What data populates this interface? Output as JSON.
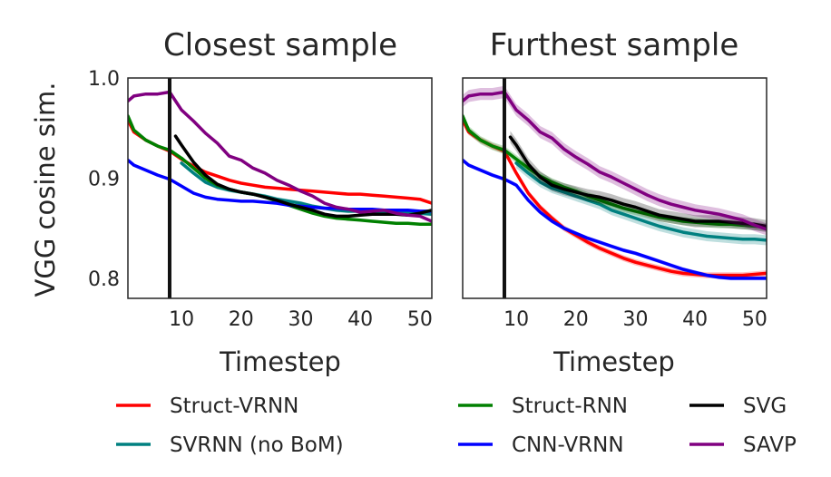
{
  "chart_data": {
    "type": "line",
    "ylabel": "VGG cosine sim.",
    "xlabel": "Timestep",
    "xlim": [
      1,
      52
    ],
    "ylim": [
      0.78,
      1.0
    ],
    "xticks": [
      10,
      20,
      30,
      40,
      50
    ],
    "yticks": [
      0.8,
      0.9,
      1.0
    ],
    "ytick_labels": [
      "0.8",
      "0.9",
      "1.0"
    ],
    "vline_x": 8,
    "grid": false,
    "legend_placement": "bottom",
    "legend": [
      {
        "name": "Struct-VRNN",
        "color": "#ff0000"
      },
      {
        "name": "SVRNN (no BoM)",
        "color": "#008080"
      },
      {
        "name": "Struct-RNN",
        "color": "#008000"
      },
      {
        "name": "CNN-VRNN",
        "color": "#0000ff"
      },
      {
        "name": "SVG",
        "color": "#000000"
      },
      {
        "name": "SAVP",
        "color": "#800080"
      }
    ],
    "panels": [
      {
        "title": "Closest sample",
        "series": [
          {
            "name": "Struct-VRNN",
            "color": "#ff0000",
            "band": 0.001,
            "x": [
              1,
              2,
              4,
              6,
              8,
              10,
              12,
              14,
              16,
              18,
              20,
              22,
              24,
              26,
              28,
              30,
              32,
              34,
              36,
              38,
              40,
              42,
              44,
              46,
              48,
              50,
              52
            ],
            "y": [
              0.958,
              0.946,
              0.938,
              0.932,
              0.927,
              0.919,
              0.912,
              0.906,
              0.902,
              0.898,
              0.895,
              0.893,
              0.891,
              0.89,
              0.889,
              0.888,
              0.887,
              0.886,
              0.885,
              0.884,
              0.884,
              0.883,
              0.882,
              0.881,
              0.88,
              0.879,
              0.875
            ]
          },
          {
            "name": "SVRNN (no BoM)",
            "color": "#008080",
            "band": 0.002,
            "x": [
              10,
              12,
              14,
              16,
              18,
              20,
              22,
              24,
              26,
              28,
              30,
              32,
              34,
              36,
              38,
              40,
              42,
              44,
              46,
              48,
              50,
              52
            ],
            "y": [
              0.915,
              0.905,
              0.896,
              0.891,
              0.888,
              0.886,
              0.884,
              0.882,
              0.879,
              0.877,
              0.875,
              0.872,
              0.87,
              0.868,
              0.867,
              0.867,
              0.867,
              0.867,
              0.866,
              0.865,
              0.865,
              0.864
            ]
          },
          {
            "name": "Struct-RNN",
            "color": "#008000",
            "band": 0.001,
            "x": [
              1,
              2,
              4,
              6,
              8,
              10,
              12,
              14,
              16,
              18,
              20,
              22,
              24,
              26,
              28,
              30,
              32,
              34,
              36,
              38,
              40,
              42,
              44,
              46,
              48,
              50,
              52
            ],
            "y": [
              0.962,
              0.948,
              0.938,
              0.932,
              0.928,
              0.92,
              0.91,
              0.9,
              0.893,
              0.889,
              0.886,
              0.884,
              0.881,
              0.877,
              0.873,
              0.869,
              0.865,
              0.862,
              0.86,
              0.859,
              0.858,
              0.857,
              0.856,
              0.855,
              0.855,
              0.854,
              0.854
            ]
          },
          {
            "name": "CNN-VRNN",
            "color": "#0000ff",
            "band": 0.001,
            "x": [
              1,
              2,
              4,
              6,
              8,
              10,
              12,
              14,
              16,
              18,
              20,
              22,
              24,
              26,
              28,
              30,
              32,
              34,
              36,
              38,
              40,
              42,
              44,
              46,
              48,
              50,
              52
            ],
            "y": [
              0.918,
              0.913,
              0.908,
              0.903,
              0.899,
              0.892,
              0.885,
              0.881,
              0.879,
              0.878,
              0.877,
              0.877,
              0.876,
              0.875,
              0.873,
              0.872,
              0.871,
              0.87,
              0.87,
              0.869,
              0.869,
              0.869,
              0.868,
              0.868,
              0.868,
              0.867,
              0.867
            ]
          },
          {
            "name": "SVG",
            "color": "#000000",
            "band": 0.001,
            "x": [
              9,
              10,
              12,
              14,
              16,
              18,
              20,
              22,
              24,
              26,
              28,
              30,
              32,
              34,
              36,
              38,
              40,
              42,
              44,
              46,
              48,
              50,
              52
            ],
            "y": [
              0.942,
              0.933,
              0.916,
              0.903,
              0.894,
              0.889,
              0.886,
              0.884,
              0.881,
              0.878,
              0.874,
              0.871,
              0.868,
              0.864,
              0.862,
              0.862,
              0.863,
              0.864,
              0.864,
              0.864,
              0.863,
              0.865,
              0.868
            ]
          },
          {
            "name": "SAVP",
            "color": "#800080",
            "band": 0.001,
            "x": [
              1,
              2,
              4,
              6,
              8,
              10,
              12,
              14,
              16,
              18,
              20,
              22,
              24,
              26,
              28,
              30,
              32,
              34,
              36,
              38,
              40,
              42,
              44,
              46,
              48,
              50,
              52
            ],
            "y": [
              0.977,
              0.982,
              0.984,
              0.984,
              0.986,
              0.968,
              0.957,
              0.945,
              0.935,
              0.922,
              0.918,
              0.91,
              0.905,
              0.898,
              0.893,
              0.887,
              0.882,
              0.875,
              0.871,
              0.869,
              0.866,
              0.867,
              0.868,
              0.865,
              0.863,
              0.862,
              0.857
            ]
          }
        ]
      },
      {
        "title": "Furthest sample",
        "series": [
          {
            "name": "Struct-VRNN",
            "color": "#ff0000",
            "band": 0.003,
            "x": [
              1,
              2,
              4,
              6,
              8,
              10,
              12,
              14,
              16,
              18,
              20,
              22,
              24,
              26,
              28,
              30,
              32,
              34,
              36,
              38,
              40,
              42,
              44,
              46,
              48,
              50,
              52
            ],
            "y": [
              0.958,
              0.946,
              0.938,
              0.932,
              0.927,
              0.905,
              0.885,
              0.871,
              0.86,
              0.85,
              0.843,
              0.836,
              0.83,
              0.825,
              0.82,
              0.816,
              0.813,
              0.81,
              0.807,
              0.805,
              0.804,
              0.803,
              0.803,
              0.803,
              0.803,
              0.804,
              0.805
            ]
          },
          {
            "name": "SVRNN (no BoM)",
            "color": "#008080",
            "band": 0.005,
            "x": [
              10,
              12,
              14,
              16,
              18,
              20,
              22,
              24,
              26,
              28,
              30,
              32,
              34,
              36,
              38,
              40,
              42,
              44,
              46,
              48,
              50,
              52
            ],
            "y": [
              0.915,
              0.905,
              0.896,
              0.89,
              0.886,
              0.882,
              0.878,
              0.874,
              0.868,
              0.864,
              0.86,
              0.856,
              0.852,
              0.849,
              0.846,
              0.844,
              0.842,
              0.841,
              0.84,
              0.839,
              0.839,
              0.838
            ]
          },
          {
            "name": "Struct-RNN",
            "color": "#008000",
            "band": 0.004,
            "x": [
              1,
              2,
              4,
              6,
              8,
              10,
              12,
              14,
              16,
              18,
              20,
              22,
              24,
              26,
              28,
              30,
              32,
              34,
              36,
              38,
              40,
              42,
              44,
              46,
              48,
              50,
              52
            ],
            "y": [
              0.962,
              0.948,
              0.938,
              0.932,
              0.928,
              0.919,
              0.91,
              0.902,
              0.896,
              0.891,
              0.887,
              0.882,
              0.878,
              0.874,
              0.87,
              0.867,
              0.864,
              0.861,
              0.859,
              0.857,
              0.856,
              0.855,
              0.854,
              0.854,
              0.853,
              0.852,
              0.851
            ]
          },
          {
            "name": "CNN-VRNN",
            "color": "#0000ff",
            "band": 0.002,
            "x": [
              1,
              2,
              4,
              6,
              8,
              10,
              12,
              14,
              16,
              18,
              20,
              22,
              24,
              26,
              28,
              30,
              32,
              34,
              36,
              38,
              40,
              42,
              44,
              46,
              48,
              50,
              52
            ],
            "y": [
              0.918,
              0.913,
              0.908,
              0.903,
              0.899,
              0.893,
              0.878,
              0.866,
              0.857,
              0.85,
              0.845,
              0.84,
              0.836,
              0.832,
              0.828,
              0.825,
              0.821,
              0.817,
              0.813,
              0.809,
              0.806,
              0.803,
              0.801,
              0.8,
              0.8,
              0.8,
              0.8
            ]
          },
          {
            "name": "SVG",
            "color": "#000000",
            "band": 0.006,
            "x": [
              9,
              10,
              12,
              14,
              16,
              18,
              20,
              22,
              24,
              26,
              28,
              30,
              32,
              34,
              36,
              38,
              40,
              42,
              44,
              46,
              48,
              50,
              52
            ],
            "y": [
              0.941,
              0.933,
              0.914,
              0.901,
              0.893,
              0.889,
              0.886,
              0.883,
              0.881,
              0.878,
              0.874,
              0.871,
              0.867,
              0.863,
              0.861,
              0.859,
              0.857,
              0.857,
              0.857,
              0.856,
              0.855,
              0.854,
              0.852
            ]
          },
          {
            "name": "SAVP",
            "color": "#800080",
            "band": 0.006,
            "x": [
              1,
              2,
              4,
              6,
              8,
              10,
              12,
              14,
              16,
              18,
              20,
              22,
              24,
              26,
              28,
              30,
              32,
              34,
              36,
              38,
              40,
              42,
              44,
              46,
              48,
              50,
              52
            ],
            "y": [
              0.977,
              0.982,
              0.984,
              0.984,
              0.986,
              0.968,
              0.958,
              0.946,
              0.94,
              0.929,
              0.921,
              0.914,
              0.906,
              0.901,
              0.895,
              0.889,
              0.883,
              0.878,
              0.874,
              0.871,
              0.868,
              0.866,
              0.864,
              0.861,
              0.858,
              0.853,
              0.849
            ]
          }
        ]
      }
    ]
  }
}
